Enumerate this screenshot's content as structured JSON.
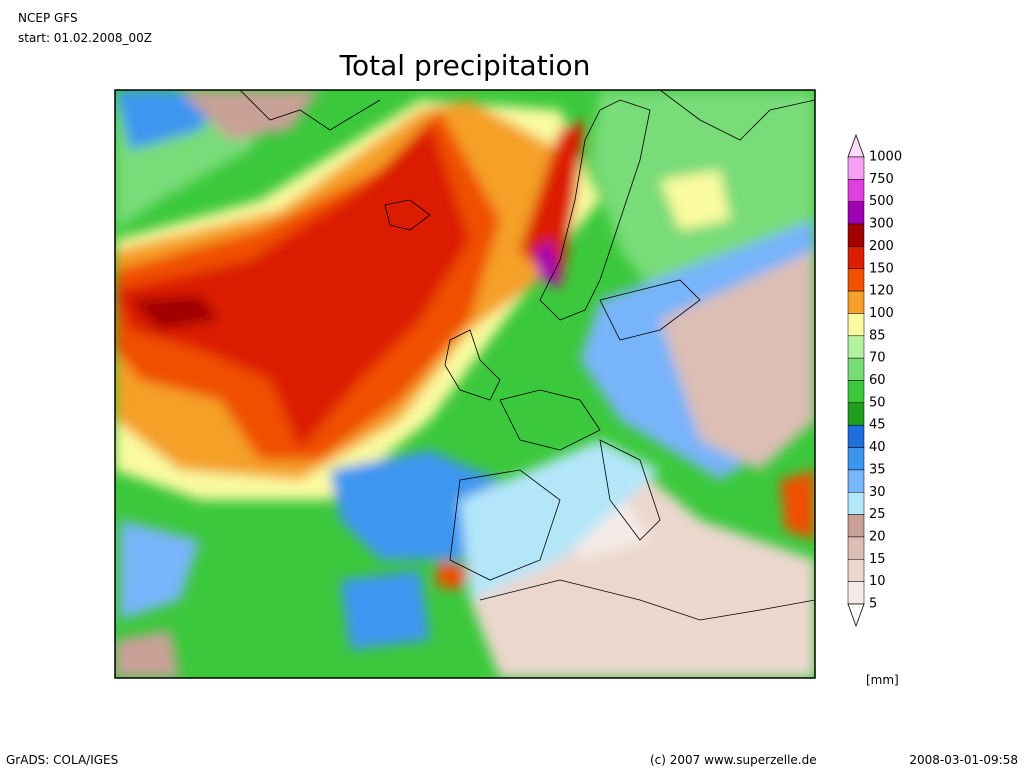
{
  "header": {
    "model": "NCEP GFS",
    "start": "start: 01.02.2008_00Z"
  },
  "title": "Total precipitation",
  "legend": {
    "levels": [
      1000,
      750,
      500,
      300,
      200,
      150,
      120,
      100,
      85,
      70,
      60,
      50,
      45,
      40,
      35,
      30,
      25,
      20,
      15,
      10,
      5
    ],
    "colors": [
      "#fcdcfc",
      "#f5a0f5",
      "#e040e0",
      "#a000b4",
      "#a00000",
      "#dc1e00",
      "#f05000",
      "#f5a028",
      "#fafaa0",
      "#b4f0a0",
      "#78dc78",
      "#3cc83c",
      "#1ea01e",
      "#1e6edc",
      "#3c96f0",
      "#78b4fa",
      "#b4e6fa",
      "#c8a096",
      "#dcbeb4",
      "#ebd7cd",
      "#f5ebe6",
      "#fffafa"
    ],
    "unit": "[mm]"
  },
  "footer": {
    "left": "GrADS: COLA/IGES",
    "center": "(c) 2007 www.superzelle.de",
    "right": "2008-03-01-09:58"
  }
}
